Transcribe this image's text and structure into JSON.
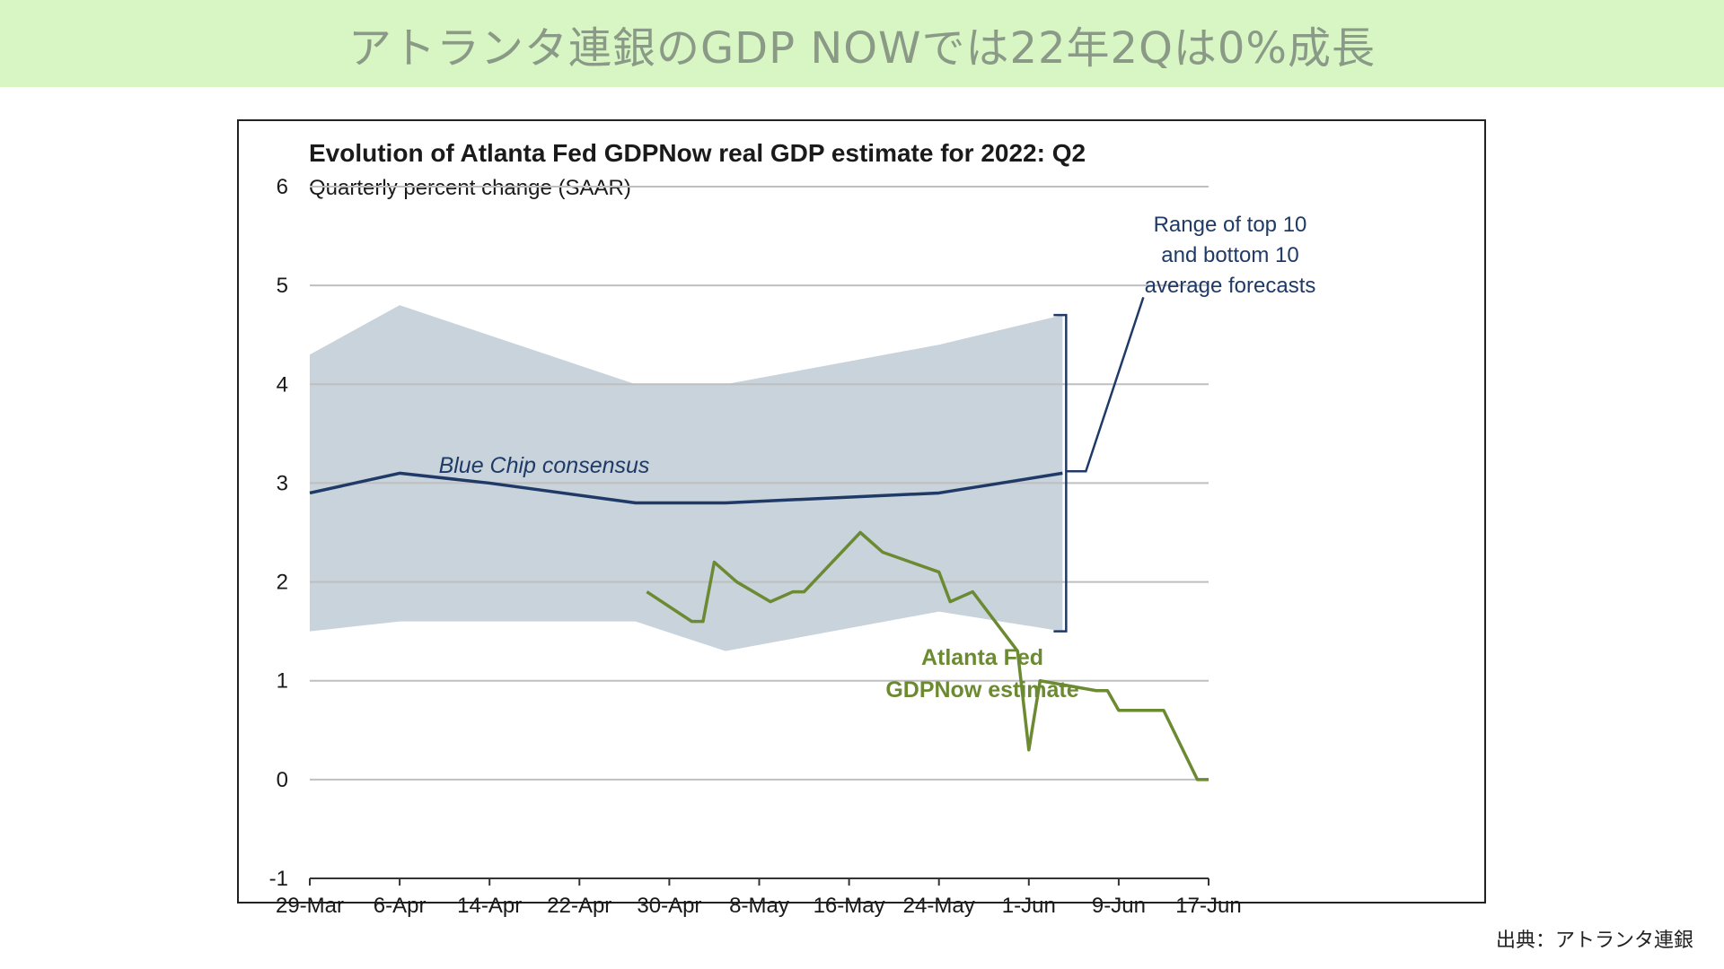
{
  "banner": {
    "title": "アトランタ連銀のGDP NOWでは22年2Qは0%成長"
  },
  "source": "出典：アトランタ連銀",
  "chart_data": {
    "type": "line",
    "title": "Evolution of Atlanta Fed GDPNow real GDP estimate for 2022: Q2",
    "subtitle": "Quarterly percent change (SAAR)",
    "ylim": [
      -1,
      6
    ],
    "y_ticks": [
      -1,
      0,
      1,
      2,
      3,
      4,
      5,
      6
    ],
    "x_ticks": [
      "29-Mar",
      "6-Apr",
      "14-Apr",
      "22-Apr",
      "30-Apr",
      "8-May",
      "16-May",
      "24-May",
      "1-Jun",
      "9-Jun",
      "17-Jun"
    ],
    "xlim": [
      "2022-03-29",
      "2022-06-17"
    ],
    "grid": true,
    "range_band": {
      "name": "Range of top 10 and bottom 10 average forecasts",
      "color": "#c8d3dc",
      "x": [
        "2022-03-29",
        "2022-04-06",
        "2022-04-27",
        "2022-05-05",
        "2022-05-24",
        "2022-06-04"
      ],
      "upper": [
        4.3,
        4.8,
        4.0,
        4.0,
        4.4,
        4.7
      ],
      "lower": [
        1.5,
        1.6,
        1.6,
        1.3,
        1.7,
        1.5
      ]
    },
    "series": [
      {
        "name": "Blue Chip consensus",
        "color": "#1f3a66",
        "x": [
          "2022-03-29",
          "2022-04-06",
          "2022-04-14",
          "2022-04-27",
          "2022-05-05",
          "2022-05-24",
          "2022-06-04"
        ],
        "values": [
          2.9,
          3.1,
          3.0,
          2.8,
          2.8,
          2.9,
          3.1
        ]
      },
      {
        "name": "Atlanta Fed GDPNow estimate",
        "color": "#6b8a32",
        "x": [
          "2022-04-28",
          "2022-05-02",
          "2022-05-03",
          "2022-05-04",
          "2022-05-06",
          "2022-05-09",
          "2022-05-11",
          "2022-05-12",
          "2022-05-17",
          "2022-05-19",
          "2022-05-24",
          "2022-05-25",
          "2022-05-27",
          "2022-05-31",
          "2022-06-01",
          "2022-06-02",
          "2022-06-07",
          "2022-06-08",
          "2022-06-09",
          "2022-06-13",
          "2022-06-16",
          "2022-06-17"
        ],
        "values": [
          1.9,
          1.6,
          1.6,
          2.2,
          2.0,
          1.8,
          1.9,
          1.9,
          2.5,
          2.3,
          2.1,
          1.8,
          1.9,
          1.3,
          0.3,
          1.0,
          0.9,
          0.9,
          0.7,
          0.7,
          0.0,
          0.0
        ]
      }
    ],
    "annotations": {
      "range_label": [
        "Range of top 10",
        "and bottom 10",
        "average forecasts"
      ],
      "bluechip_label": "Blue Chip consensus",
      "gdpnow_label": [
        "Atlanta Fed",
        "GDPNow estimate"
      ]
    },
    "colors": {
      "grid": "#bfbfbf",
      "axis": "#333333",
      "text": "#1a1a1a",
      "range_text": "#1f3a66"
    }
  }
}
